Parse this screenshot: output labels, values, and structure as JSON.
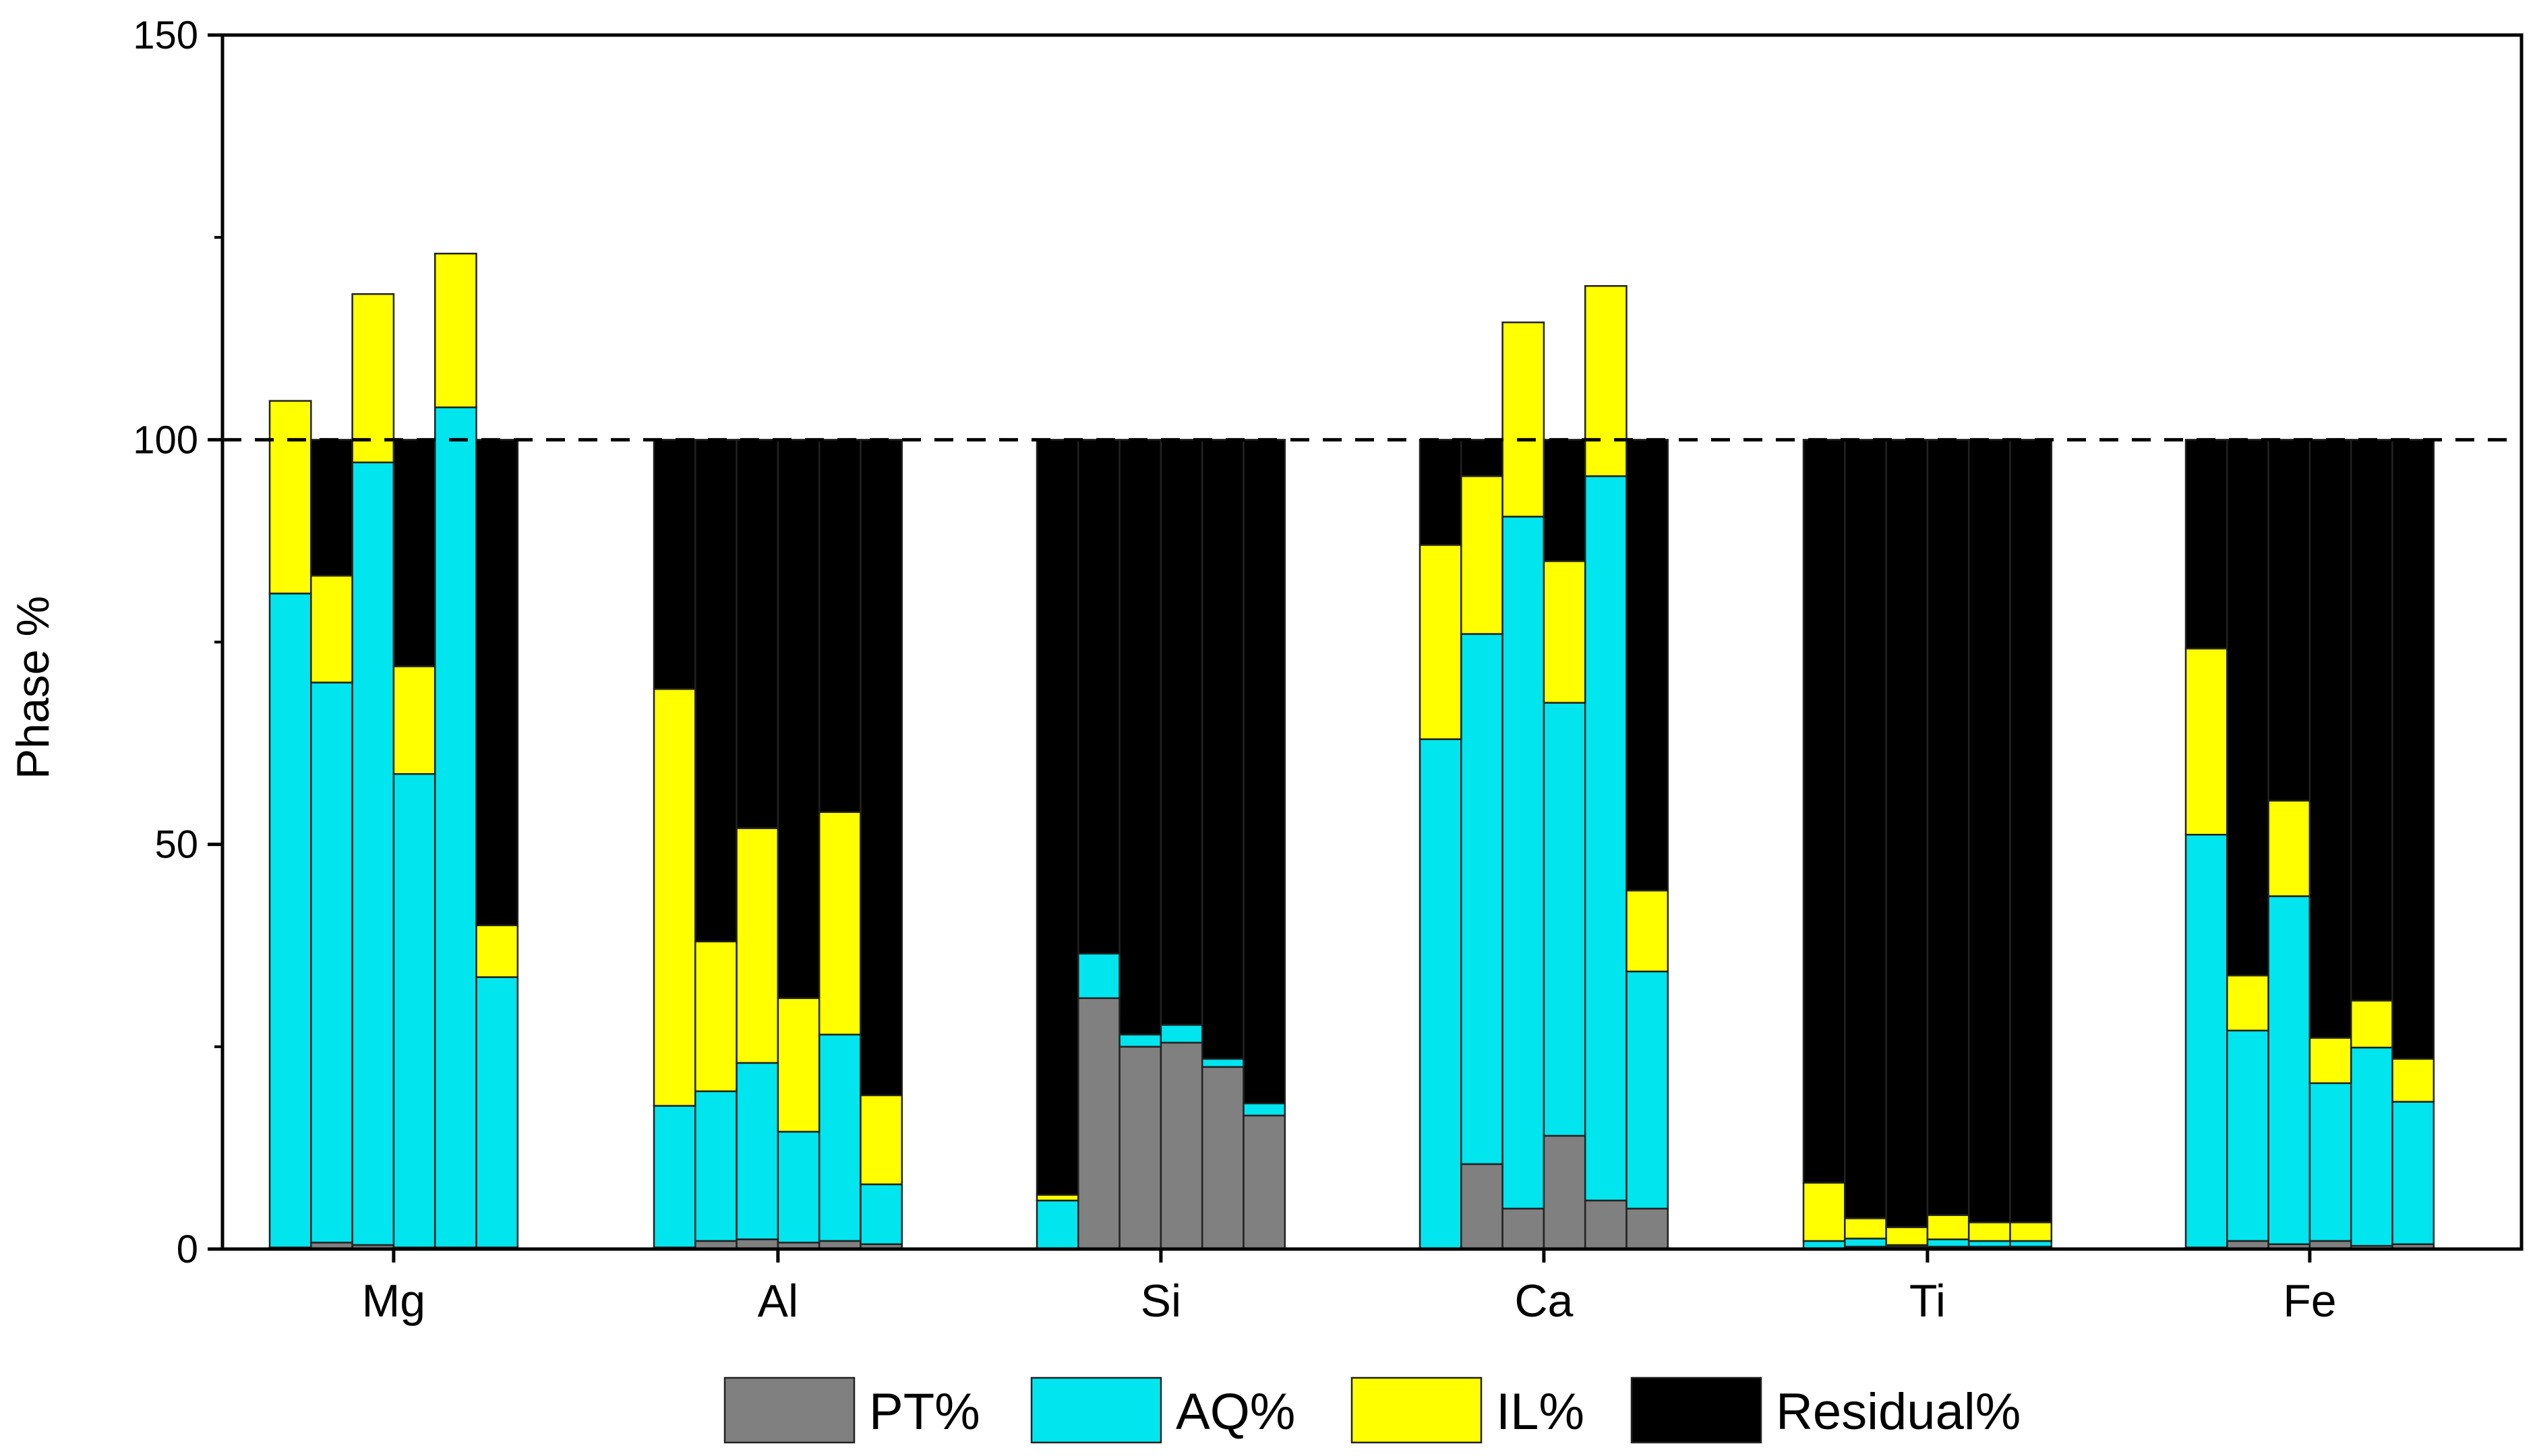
{
  "chart_data": {
    "type": "bar",
    "subtype": "stacked, 6 samples per element; Residual% fills each bar up to 100",
    "title": "",
    "xlabel": "",
    "ylabel": "Phase %",
    "ylim": [
      0,
      150
    ],
    "yticks": [
      0,
      50,
      100,
      150
    ],
    "reference_line": 100,
    "legend_position": "bottom",
    "categories": [
      "Mg",
      "Al",
      "Si",
      "Ca",
      "Ti",
      "Fe"
    ],
    "samples_per_category": 6,
    "series": [
      {
        "name": "PT%",
        "color": "#808080",
        "values": [
          [
            0.2,
            0.8,
            0.5,
            0.2,
            0.2,
            0.2
          ],
          [
            0.2,
            1.0,
            1.2,
            0.8,
            1.0,
            0.6
          ],
          [
            0.0,
            31.0,
            25.0,
            25.5,
            22.5,
            16.5
          ],
          [
            0.0,
            10.5,
            5.0,
            14.0,
            6.0,
            5.0
          ],
          [
            0.0,
            0.3,
            0.3,
            0.3,
            0.3,
            0.3
          ],
          [
            0.2,
            1.0,
            0.6,
            1.0,
            0.4,
            0.6
          ]
        ]
      },
      {
        "name": "AQ%",
        "color": "#00E5EE",
        "values": [
          [
            80.8,
            69.2,
            96.7,
            58.5,
            103.8,
            33.4
          ],
          [
            17.5,
            18.5,
            21.8,
            13.7,
            25.5,
            7.4
          ],
          [
            6.0,
            5.5,
            1.5,
            2.2,
            1.0,
            1.5
          ],
          [
            63.0,
            65.5,
            85.5,
            53.5,
            89.5,
            29.3
          ],
          [
            1.0,
            1.0,
            0.2,
            0.9,
            0.7,
            0.7
          ],
          [
            51.0,
            26.0,
            43.0,
            19.5,
            24.5,
            17.6
          ]
        ]
      },
      {
        "name": "IL%",
        "color": "#FFFF00",
        "values": [
          [
            23.8,
            13.2,
            20.8,
            13.3,
            19.0,
            6.4
          ],
          [
            51.5,
            18.5,
            29.0,
            16.5,
            27.5,
            11.0
          ],
          [
            0.7,
            0.0,
            0.0,
            0.0,
            0.0,
            0.0
          ],
          [
            24.0,
            19.5,
            24.0,
            17.5,
            23.5,
            10.0
          ],
          [
            7.2,
            2.5,
            2.2,
            3.0,
            2.3,
            2.3
          ],
          [
            23.0,
            6.8,
            11.8,
            5.6,
            5.8,
            5.3
          ]
        ]
      },
      {
        "name": "Residual%",
        "color": "#000000",
        "fill_to": 100
      }
    ]
  }
}
